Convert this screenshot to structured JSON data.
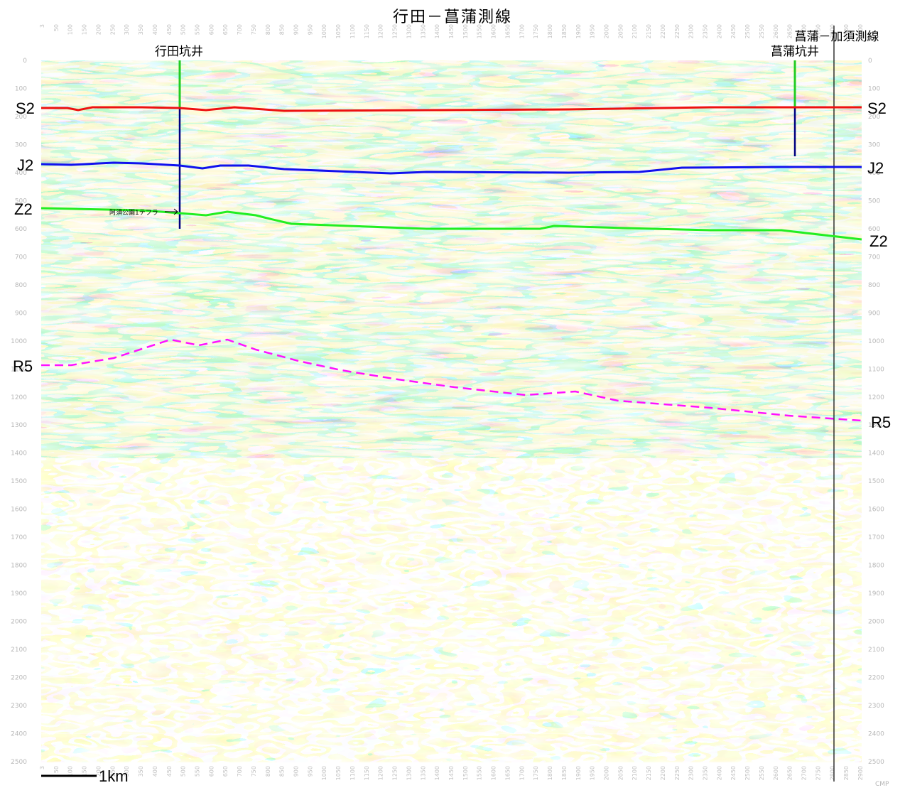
{
  "title": "行田－菖蒲測線",
  "crossline_label": "菖蒲－加須測線",
  "wells": [
    {
      "name": "行田坑井"
    },
    {
      "name": "菖蒲坑井"
    }
  ],
  "tephra_label": "阿須公園1テフラ",
  "scale_bar_label": "1km",
  "cmp_axis_label": "CMP",
  "horizons": [
    {
      "name": "S2",
      "color": "#ff0000",
      "style": "solid"
    },
    {
      "name": "J2",
      "color": "#0000ff",
      "style": "solid"
    },
    {
      "name": "Z2",
      "color": "#00ff00",
      "style": "solid"
    },
    {
      "name": "R5",
      "color": "#ff00ff",
      "style": "dashed"
    }
  ],
  "depth_ticks": [
    "0",
    "100",
    "200",
    "300",
    "400",
    "500",
    "600",
    "700",
    "800",
    "900",
    "1000",
    "1100",
    "1200",
    "1300",
    "1400",
    "1500",
    "1600",
    "1700",
    "1800",
    "1900",
    "2000",
    "2100",
    "2200",
    "2300",
    "2400",
    "2500"
  ],
  "cmp_ticks": [
    "3",
    "50",
    "100",
    "150",
    "200",
    "250",
    "300",
    "350",
    "400",
    "450",
    "500",
    "550",
    "600",
    "650",
    "700",
    "750",
    "800",
    "850",
    "900",
    "950",
    "1000",
    "1050",
    "1100",
    "1150",
    "1200",
    "1250",
    "1300",
    "1350",
    "1400",
    "1450",
    "1500",
    "1550",
    "1600",
    "1650",
    "1700",
    "1750",
    "1800",
    "1850",
    "1900",
    "1950",
    "2000",
    "2050",
    "2100",
    "2150",
    "2200",
    "2250",
    "2300",
    "2350",
    "2400",
    "2450",
    "2500",
    "2550",
    "2600",
    "2650",
    "2700",
    "2750",
    "2800",
    "2850",
    "2900"
  ]
}
